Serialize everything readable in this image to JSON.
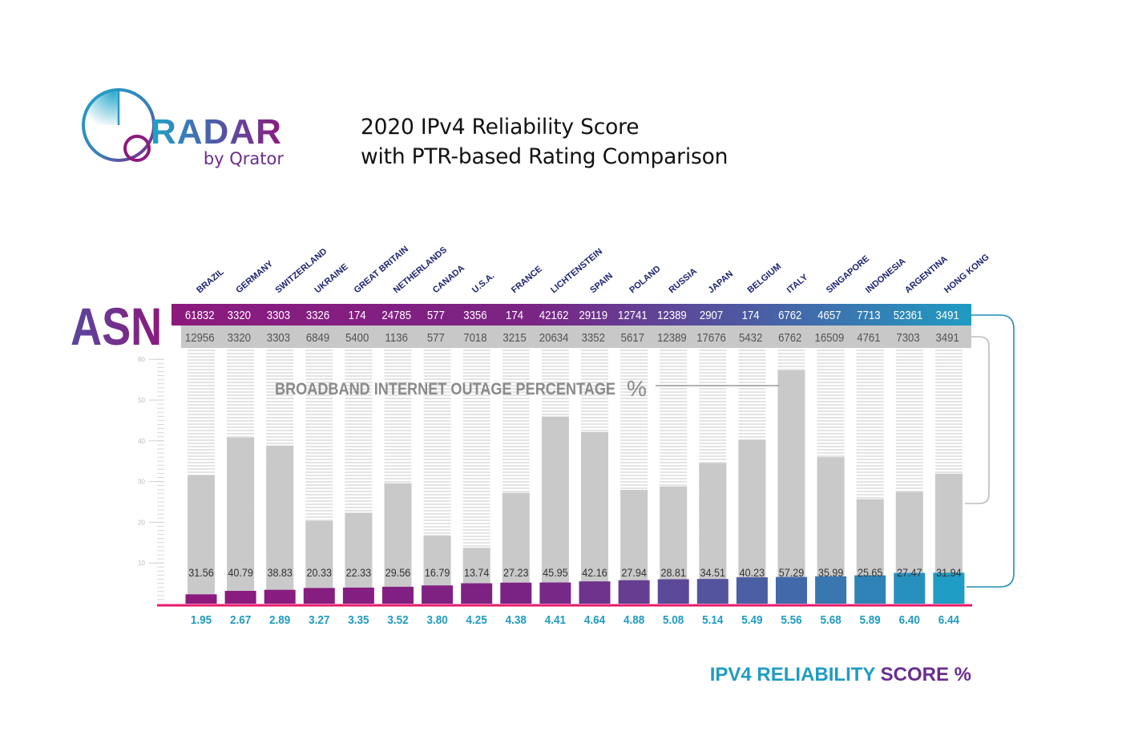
{
  "logo": {
    "name": "RADAR",
    "byline": "by Qrator",
    "colors": {
      "teal": "#1f9cc3",
      "purple": "#8c1a7e",
      "indigo": "#5a4a9e"
    }
  },
  "title": {
    "line1": "2020 IPv4 Reliability Score",
    "line2": "with PTR-based Rating Comparison"
  },
  "colors": {
    "asn_row_start": "#8c1a7e",
    "asn_row_end": "#1f9cc3",
    "ptr_row": "#c8c8c8",
    "gray_bar": "#c9c9c9",
    "stripe": "#e6e6e6",
    "baseline": "#e8196b",
    "score_text": "#1f9cc3",
    "country_text": "#1d2371",
    "asn_label_start": "#5a4a9e",
    "asn_label_end": "#8c1a7e",
    "outage_label": "#8a8a8a",
    "connector_teal": "#1f8fb8",
    "connector_gray": "#bdbdbd"
  },
  "chart_data": {
    "type": "bar",
    "title": "2020 IPv4 Reliability Score with PTR-based Rating Comparison",
    "row_label": "ASN",
    "categories": [
      "BRAZIL",
      "GERMANY",
      "SWITZERLAND",
      "UKRAINE",
      "GREAT BRITAIN",
      "NETHERLANDS",
      "CANADA",
      "U.S.A.",
      "FRANCE",
      "LICHTENSTEIN",
      "SPAIN",
      "POLAND",
      "RUSSIA",
      "JAPAN",
      "BELGIUM",
      "ITALY",
      "SINGAPORE",
      "INDONESIA",
      "ARGENTINA",
      "HONG KONG"
    ],
    "asn_reliability": [
      "61832",
      "3320",
      "3303",
      "3326",
      "174",
      "24785",
      "577",
      "3356",
      "174",
      "42162",
      "29119",
      "12741",
      "12389",
      "2907",
      "174",
      "6762",
      "4657",
      "7713",
      "52361",
      "3491"
    ],
    "asn_ptr": [
      "12956",
      "3320",
      "3303",
      "6849",
      "5400",
      "1136",
      "577",
      "7018",
      "3215",
      "20634",
      "3352",
      "5617",
      "12389",
      "17676",
      "5432",
      "6762",
      "16509",
      "4761",
      "7303",
      "3491"
    ],
    "series": [
      {
        "name": "BROADBAND INTERNET OUTAGE PERCENTAGE %",
        "values": [
          31.56,
          40.79,
          38.83,
          20.33,
          22.33,
          29.56,
          16.79,
          13.74,
          27.23,
          45.95,
          42.16,
          27.94,
          28.81,
          34.51,
          40.23,
          57.29,
          35.99,
          25.65,
          27.47,
          31.94
        ],
        "labels": [
          "31.56",
          "40.79",
          "38.83",
          "20.33",
          "22.33",
          "29.56",
          "16.79",
          "13.74",
          "27.23",
          "45.95",
          "42.16",
          "27.94",
          "28.81",
          "34.51",
          "40.23",
          "57.29",
          "35.99",
          "25.65",
          "27.47",
          "31.94"
        ]
      },
      {
        "name": "IPV4 RELIABILITY SCORE %",
        "values": [
          1.95,
          2.67,
          2.89,
          3.27,
          3.35,
          3.52,
          3.8,
          4.25,
          4.38,
          4.41,
          4.64,
          4.88,
          5.08,
          5.14,
          5.49,
          5.56,
          5.68,
          5.89,
          6.4,
          6.44
        ],
        "labels": [
          "1.95",
          "2.67",
          "2.89",
          "3.27",
          "3.35",
          "3.52",
          "3.80",
          "4.25",
          "4.38",
          "4.41",
          "4.64",
          "4.88",
          "5.08",
          "5.14",
          "5.49",
          "5.56",
          "5.68",
          "5.89",
          "6.40",
          "6.44"
        ]
      }
    ],
    "y_ticks": [
      "10",
      "20",
      "30",
      "40",
      "50",
      "60"
    ],
    "y_tick_values": [
      10,
      20,
      30,
      40,
      50,
      60
    ],
    "ylim": [
      0,
      60
    ],
    "outage_axis_label": "BROADBAND INTERNET OUTAGE PERCENTAGE",
    "outage_axis_unit": "%",
    "score_axis_label_part1": "IPV4 RELIABILITY",
    "score_axis_label_part2": "SCORE %",
    "grid": false,
    "legend": "none"
  }
}
